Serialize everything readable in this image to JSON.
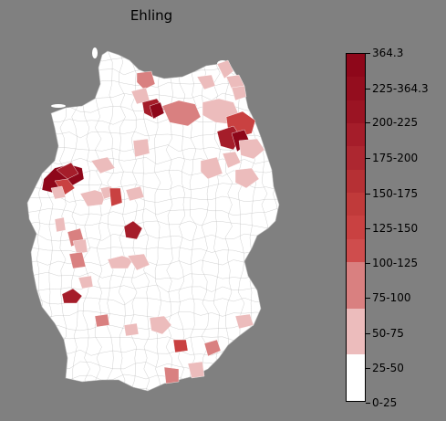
{
  "title": "Ehling",
  "legend": {
    "ticks": [
      "0-25",
      "25-50",
      "50-75",
      "75-100",
      "100-125",
      "125-150",
      "150-175",
      "175-200",
      "200-225",
      "225-364.3",
      "364.3"
    ],
    "colors": [
      "#ffffff",
      "#ffffff",
      "#ecbcbc",
      "#ecbcbc",
      "#d98080",
      "#d98080",
      "#cf4d4d",
      "#c94141",
      "#c03a3a",
      "#b63034",
      "#ad2730",
      "#a51d2a",
      "#9b1423",
      "#940d1e",
      "#8e071a"
    ]
  },
  "map": {
    "land_color": "#ffffff",
    "border_color": "#b0b0b0",
    "regions": [
      {
        "level": 2,
        "color": "#ecbcbc"
      },
      {
        "level": 3,
        "color": "#d98080"
      },
      {
        "level": 4,
        "color": "#c94141"
      },
      {
        "level": 5,
        "color": "#a51d2a"
      },
      {
        "level": 6,
        "color": "#8e071a"
      }
    ]
  }
}
